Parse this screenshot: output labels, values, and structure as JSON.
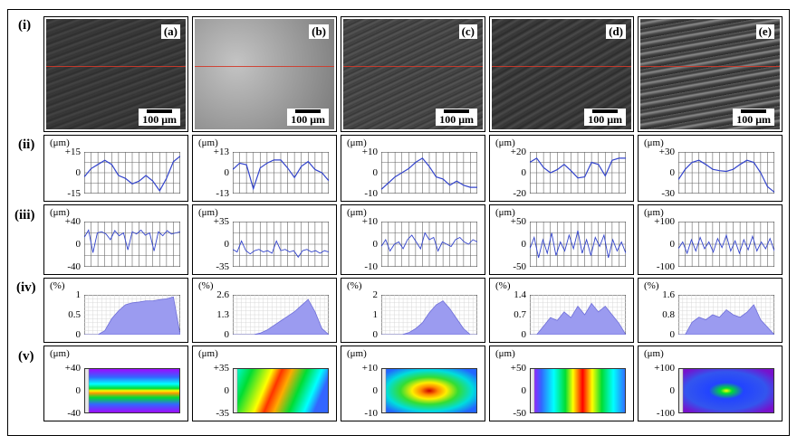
{
  "row_labels": [
    "(i)",
    "(ii)",
    "(iii)",
    "(iv)",
    "(v)"
  ],
  "panels": [
    {
      "tag": "(a)",
      "scale_label": "100 μm"
    },
    {
      "tag": "(b)",
      "scale_label": "100 μm"
    },
    {
      "tag": "(c)",
      "scale_label": "100 μm"
    },
    {
      "tag": "(d)",
      "scale_label": "100 μm"
    },
    {
      "tag": "(e)",
      "scale_label": "100 μm"
    }
  ],
  "units": {
    "height": "(μm)",
    "percent": "(%)"
  },
  "chart_data": [
    {
      "type": "line",
      "row": "ii",
      "panel": "a",
      "ylabel": "(μm)",
      "ylim": [
        -15,
        15
      ],
      "yticks": [
        "+15",
        "0",
        "-15"
      ],
      "x": [
        0,
        8,
        16,
        24,
        32,
        40,
        48,
        56,
        64,
        72,
        80,
        88,
        96,
        104,
        112
      ],
      "y": [
        -3,
        3,
        6,
        9,
        6,
        -2,
        -4,
        -8,
        -6,
        -2,
        -6,
        -13,
        -4,
        8,
        12
      ]
    },
    {
      "type": "line",
      "row": "ii",
      "panel": "b",
      "ylabel": "(μm)",
      "ylim": [
        -13,
        13
      ],
      "yticks": [
        "+13",
        "0",
        "-13"
      ],
      "x": [
        0,
        8,
        16,
        24,
        32,
        40,
        48,
        56,
        64,
        72,
        80,
        88,
        96,
        104,
        112
      ],
      "y": [
        2,
        6,
        5,
        -10,
        3,
        6,
        8,
        8,
        3,
        -3,
        4,
        7,
        2,
        0,
        -5
      ]
    },
    {
      "type": "line",
      "row": "ii",
      "panel": "c",
      "ylabel": "(μm)",
      "ylim": [
        -10,
        10
      ],
      "yticks": [
        "+10",
        "0",
        "-10"
      ],
      "x": [
        0,
        8,
        16,
        24,
        32,
        40,
        48,
        56,
        64,
        72,
        80,
        88,
        96,
        104,
        112
      ],
      "y": [
        -8,
        -5,
        -2,
        0,
        2,
        5,
        7,
        3,
        -2,
        -3,
        -6,
        -4,
        -6,
        -7,
        -7
      ]
    },
    {
      "type": "line",
      "row": "ii",
      "panel": "d",
      "ylabel": "(μm)",
      "ylim": [
        -20,
        20
      ],
      "yticks": [
        "+20",
        "0",
        "-20"
      ],
      "x": [
        0,
        8,
        16,
        24,
        32,
        40,
        48,
        56,
        64,
        72,
        80,
        88,
        96,
        104,
        112
      ],
      "y": [
        10,
        14,
        5,
        0,
        3,
        8,
        2,
        -5,
        -4,
        10,
        8,
        -3,
        12,
        14,
        14
      ]
    },
    {
      "type": "line",
      "row": "ii",
      "panel": "e",
      "ylabel": "(μm)",
      "ylim": [
        -30,
        30
      ],
      "yticks": [
        "+30",
        "0",
        "-30"
      ],
      "x": [
        0,
        8,
        16,
        24,
        32,
        40,
        48,
        56,
        64,
        72,
        80,
        88,
        96,
        104,
        112
      ],
      "y": [
        -10,
        5,
        15,
        18,
        12,
        5,
        3,
        2,
        5,
        12,
        18,
        15,
        0,
        -20,
        -28
      ]
    },
    {
      "type": "line",
      "row": "iii",
      "panel": "a",
      "ylabel": "(μm)",
      "ylim": [
        -40,
        40
      ],
      "yticks": [
        "+40",
        "0",
        "-40"
      ],
      "x": [
        0,
        5,
        10,
        15,
        20,
        25,
        30,
        35,
        40,
        45,
        50,
        55,
        60,
        65,
        70,
        75,
        80,
        85,
        90,
        95,
        100,
        105,
        110
      ],
      "y": [
        12,
        25,
        -15,
        20,
        22,
        18,
        8,
        24,
        15,
        20,
        -10,
        22,
        18,
        25,
        16,
        20,
        -12,
        22,
        15,
        24,
        18,
        20,
        22
      ]
    },
    {
      "type": "line",
      "row": "iii",
      "panel": "b",
      "ylabel": "(μm)",
      "ylim": [
        -35,
        35
      ],
      "yticks": [
        "+35",
        "0",
        "-35"
      ],
      "x": [
        0,
        5,
        10,
        15,
        20,
        25,
        30,
        35,
        40,
        45,
        50,
        55,
        60,
        65,
        70,
        75,
        80,
        85,
        90,
        95,
        100,
        105,
        110
      ],
      "y": [
        -8,
        -12,
        5,
        -10,
        -15,
        -10,
        -8,
        -12,
        -10,
        -14,
        5,
        -10,
        -8,
        -12,
        -10,
        -20,
        -10,
        -8,
        -12,
        -10,
        -14,
        -10,
        -12
      ]
    },
    {
      "type": "line",
      "row": "iii",
      "panel": "c",
      "ylabel": "(μm)",
      "ylim": [
        -10,
        10
      ],
      "yticks": [
        "+10",
        "0",
        "-10"
      ],
      "x": [
        0,
        5,
        10,
        15,
        20,
        25,
        30,
        35,
        40,
        45,
        50,
        55,
        60,
        65,
        70,
        75,
        80,
        85,
        90,
        95,
        100,
        105,
        110
      ],
      "y": [
        -1,
        2,
        -3,
        0,
        1,
        -2,
        2,
        4,
        1,
        -2,
        5,
        2,
        3,
        -3,
        1,
        0,
        -1,
        2,
        3,
        1,
        0,
        2,
        1
      ]
    },
    {
      "type": "line",
      "row": "iii",
      "panel": "d",
      "ylabel": "(μm)",
      "ylim": [
        -50,
        50
      ],
      "yticks": [
        "+50",
        "0",
        "-50"
      ],
      "x": [
        0,
        5,
        10,
        15,
        20,
        25,
        30,
        35,
        40,
        45,
        50,
        55,
        60,
        65,
        70,
        75,
        80,
        85,
        90,
        95,
        100,
        105,
        110
      ],
      "y": [
        -10,
        15,
        -30,
        10,
        -20,
        25,
        -25,
        5,
        -15,
        20,
        -10,
        30,
        -20,
        10,
        -25,
        15,
        -5,
        20,
        -30,
        10,
        -15,
        5,
        -20
      ]
    },
    {
      "type": "line",
      "row": "iii",
      "panel": "e",
      "ylabel": "(μm)",
      "ylim": [
        -100,
        100
      ],
      "yticks": [
        "+100",
        "0",
        "-100"
      ],
      "x": [
        0,
        5,
        10,
        15,
        20,
        25,
        30,
        35,
        40,
        45,
        50,
        55,
        60,
        65,
        70,
        75,
        80,
        85,
        90,
        95,
        100,
        105,
        110
      ],
      "y": [
        -20,
        10,
        -40,
        20,
        -30,
        30,
        -20,
        10,
        -35,
        25,
        -15,
        40,
        -30,
        15,
        -40,
        20,
        -25,
        35,
        -30,
        10,
        -20,
        25,
        -30
      ]
    },
    {
      "type": "area",
      "row": "iv",
      "panel": "a",
      "ylabel": "(%)",
      "ylim": [
        0,
        1
      ],
      "yticks": [
        "1",
        "0.5",
        "0"
      ],
      "x": [
        0,
        8,
        16,
        24,
        32,
        40,
        48,
        56,
        64,
        72,
        80,
        88,
        96,
        104,
        112
      ],
      "y": [
        0,
        0,
        0,
        0.1,
        0.4,
        0.6,
        0.75,
        0.8,
        0.82,
        0.85,
        0.85,
        0.88,
        0.9,
        0.95,
        0
      ]
    },
    {
      "type": "area",
      "row": "iv",
      "panel": "b",
      "ylabel": "(%)",
      "ylim": [
        0,
        2.6
      ],
      "yticks": [
        "2.6",
        "1.3",
        "0"
      ],
      "x": [
        0,
        8,
        16,
        24,
        32,
        40,
        48,
        56,
        64,
        72,
        80,
        88,
        96,
        104,
        112
      ],
      "y": [
        0,
        0,
        0,
        0,
        0.1,
        0.3,
        0.6,
        0.9,
        1.2,
        1.5,
        1.9,
        2.3,
        1.5,
        0.4,
        0
      ]
    },
    {
      "type": "area",
      "row": "iv",
      "panel": "c",
      "ylabel": "(%)",
      "ylim": [
        0,
        2
      ],
      "yticks": [
        "2",
        "1",
        "0"
      ],
      "x": [
        0,
        8,
        16,
        24,
        32,
        40,
        48,
        56,
        64,
        72,
        80,
        88,
        96,
        104,
        112
      ],
      "y": [
        0,
        0,
        0,
        0,
        0.1,
        0.3,
        0.6,
        1.1,
        1.5,
        1.7,
        1.3,
        0.8,
        0.3,
        0,
        0
      ]
    },
    {
      "type": "area",
      "row": "iv",
      "panel": "d",
      "ylabel": "(%)",
      "ylim": [
        0,
        1.4
      ],
      "yticks": [
        "1.4",
        "0.7",
        "0"
      ],
      "x": [
        0,
        8,
        16,
        24,
        32,
        40,
        48,
        56,
        64,
        72,
        80,
        88,
        96,
        104,
        112
      ],
      "y": [
        0,
        0,
        0.3,
        0.6,
        0.5,
        0.8,
        0.6,
        1.0,
        0.7,
        1.1,
        0.8,
        1.0,
        0.7,
        0.4,
        0
      ]
    },
    {
      "type": "area",
      "row": "iv",
      "panel": "e",
      "ylabel": "(%)",
      "ylim": [
        0,
        1.6
      ],
      "yticks": [
        "1.6",
        "0.8",
        "0"
      ],
      "x": [
        0,
        8,
        16,
        24,
        32,
        40,
        48,
        56,
        64,
        72,
        80,
        88,
        96,
        104,
        112
      ],
      "y": [
        0,
        0,
        0.5,
        0.7,
        0.6,
        0.8,
        0.7,
        1.0,
        0.8,
        0.7,
        0.9,
        1.2,
        0.6,
        0.3,
        0
      ]
    },
    {
      "type": "heatmap",
      "row": "v",
      "panel": "a",
      "ylabel": "(μm)",
      "yticks": [
        "+40",
        "0",
        "-40"
      ]
    },
    {
      "type": "heatmap",
      "row": "v",
      "panel": "b",
      "ylabel": "(μm)",
      "yticks": [
        "+35",
        "0",
        "-35"
      ]
    },
    {
      "type": "heatmap",
      "row": "v",
      "panel": "c",
      "ylabel": "(μm)",
      "yticks": [
        "+10",
        "0",
        "-10"
      ]
    },
    {
      "type": "heatmap",
      "row": "v",
      "panel": "d",
      "ylabel": "(μm)",
      "yticks": [
        "+50",
        "0",
        "-50"
      ]
    },
    {
      "type": "heatmap",
      "row": "v",
      "panel": "e",
      "ylabel": "(μm)",
      "yticks": [
        "+100",
        "0",
        "-100"
      ]
    }
  ]
}
